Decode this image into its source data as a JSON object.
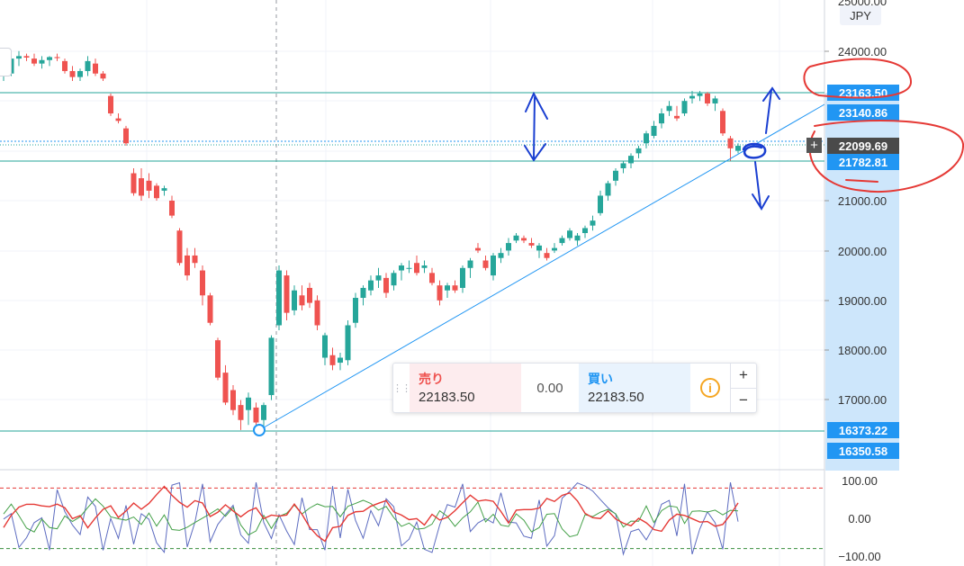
{
  "currency": "JPY",
  "price_axis": {
    "top_partial": "25000.00",
    "ticks": [
      "24000.00",
      "21000.00",
      "20000.00",
      "19000.00",
      "18000.00",
      "17000.00"
    ],
    "badges": [
      {
        "label": "23163.50",
        "color": "#2196f3"
      },
      {
        "label": "23140.86",
        "color": "#2196f3"
      },
      {
        "label": "22099.69",
        "color": "#4a4a4a"
      },
      {
        "label": "21782.81",
        "color": "#2196f3"
      },
      {
        "label": "16373.22",
        "color": "#2196f3"
      },
      {
        "label": "16350.58",
        "color": "#2196f3"
      }
    ]
  },
  "oscillator_axis": {
    "ticks": [
      "100.00",
      "0.00",
      "−100.00"
    ]
  },
  "trade_panel": {
    "sell_label": "売り",
    "sell_price": "22183.50",
    "spread": "0.00",
    "buy_label": "買い",
    "buy_price": "22183.50",
    "info_icon": "i",
    "plus": "+",
    "minus": "−"
  },
  "colors": {
    "up": "#26a69a",
    "down": "#ef5350",
    "line": "#2196f3",
    "axis_highlight": "#cde6fb",
    "annotation": "#1565c0",
    "circle": "#e53935"
  },
  "chart_data": {
    "type": "candlestick",
    "series_desc": "Nikkei 225 style daily candles",
    "candles": [
      [
        23500,
        23600,
        23400,
        23550
      ],
      [
        23550,
        23900,
        23500,
        23850
      ],
      [
        23850,
        24000,
        23700,
        23900
      ],
      [
        23900,
        23950,
        23800,
        23870
      ],
      [
        23850,
        23950,
        23700,
        23750
      ],
      [
        23750,
        23900,
        23650,
        23820
      ],
      [
        23820,
        23900,
        23700,
        23880
      ],
      [
        23880,
        23950,
        23800,
        23860
      ],
      [
        23800,
        23850,
        23550,
        23600
      ],
      [
        23600,
        23700,
        23400,
        23480
      ],
      [
        23480,
        23650,
        23400,
        23600
      ],
      [
        23600,
        23900,
        23500,
        23800
      ],
      [
        23750,
        23850,
        23500,
        23550
      ],
      [
        23550,
        23600,
        23400,
        23450
      ],
      [
        23100,
        23150,
        22700,
        22750
      ],
      [
        22650,
        22750,
        22550,
        22600
      ],
      [
        22450,
        22500,
        22100,
        22150
      ],
      [
        21550,
        21650,
        21100,
        21150
      ],
      [
        21450,
        21650,
        21000,
        21100
      ],
      [
        21400,
        21550,
        21050,
        21200
      ],
      [
        21300,
        21350,
        21000,
        21050
      ],
      [
        21200,
        21300,
        21100,
        21250
      ],
      [
        21000,
        21100,
        20650,
        20700
      ],
      [
        20400,
        20450,
        19700,
        19750
      ],
      [
        19900,
        20050,
        19400,
        19500
      ],
      [
        19900,
        20050,
        19650,
        19750
      ],
      [
        19600,
        19700,
        18900,
        19100
      ],
      [
        19100,
        19150,
        18500,
        18550
      ],
      [
        18200,
        18250,
        17400,
        17450
      ],
      [
        17550,
        17700,
        16900,
        16950
      ],
      [
        17200,
        17300,
        16700,
        16800
      ],
      [
        16900,
        17000,
        16400,
        16600
      ],
      [
        16800,
        17150,
        16500,
        17050
      ],
      [
        16850,
        16950,
        16450,
        16550
      ],
      [
        16600,
        16950,
        16400,
        16900
      ],
      [
        17100,
        18300,
        17000,
        18250
      ],
      [
        18500,
        19700,
        18400,
        19600
      ],
      [
        19500,
        19600,
        18600,
        18750
      ],
      [
        18800,
        19300,
        18700,
        19200
      ],
      [
        19100,
        19300,
        18800,
        18900
      ],
      [
        19250,
        19350,
        18850,
        18950
      ],
      [
        19000,
        19100,
        18400,
        18500
      ],
      [
        17850,
        18350,
        17700,
        18300
      ],
      [
        17900,
        18050,
        17600,
        17700
      ],
      [
        17750,
        17950,
        17600,
        17850
      ],
      [
        17800,
        18600,
        17700,
        18500
      ],
      [
        18550,
        19150,
        18450,
        19050
      ],
      [
        19050,
        19300,
        18900,
        19250
      ],
      [
        19200,
        19500,
        19100,
        19400
      ],
      [
        19400,
        19650,
        19250,
        19500
      ],
      [
        19450,
        19550,
        19050,
        19150
      ],
      [
        19300,
        19600,
        19200,
        19550
      ],
      [
        19600,
        19750,
        19400,
        19700
      ],
      [
        19650,
        19800,
        19550,
        19650
      ],
      [
        19750,
        19900,
        19500,
        19550
      ],
      [
        19650,
        19800,
        19550,
        19700
      ],
      [
        19550,
        19650,
        19300,
        19350
      ],
      [
        19300,
        19400,
        18900,
        19000
      ],
      [
        19200,
        19350,
        19050,
        19300
      ],
      [
        19300,
        19400,
        19150,
        19200
      ],
      [
        19250,
        19700,
        19150,
        19650
      ],
      [
        19650,
        19850,
        19450,
        19800
      ],
      [
        20050,
        20150,
        19950,
        20000
      ],
      [
        19800,
        19900,
        19600,
        19650
      ],
      [
        19500,
        19950,
        19400,
        19900
      ],
      [
        19850,
        20050,
        19750,
        19950
      ],
      [
        20000,
        20250,
        19900,
        20150
      ],
      [
        20200,
        20350,
        20150,
        20300
      ],
      [
        20250,
        20300,
        20150,
        20200
      ],
      [
        20150,
        20250,
        20050,
        20100
      ],
      [
        20000,
        20150,
        19850,
        20100
      ],
      [
        19950,
        20050,
        19800,
        19850
      ],
      [
        20000,
        20150,
        19950,
        20050
      ],
      [
        20150,
        20300,
        20100,
        20250
      ],
      [
        20250,
        20450,
        20200,
        20400
      ],
      [
        20200,
        20350,
        20100,
        20300
      ],
      [
        20350,
        20500,
        20250,
        20450
      ],
      [
        20500,
        20700,
        20400,
        20600
      ],
      [
        20750,
        21200,
        20700,
        21100
      ],
      [
        21100,
        21400,
        21000,
        21350
      ],
      [
        21400,
        21650,
        21300,
        21600
      ],
      [
        21650,
        21800,
        21550,
        21750
      ],
      [
        21750,
        21950,
        21650,
        21900
      ],
      [
        21950,
        22100,
        21850,
        22050
      ],
      [
        22150,
        22400,
        22050,
        22350
      ],
      [
        22300,
        22600,
        22250,
        22500
      ],
      [
        22550,
        22850,
        22450,
        22750
      ],
      [
        22800,
        23000,
        22700,
        22900
      ],
      [
        22700,
        22900,
        22600,
        22650
      ],
      [
        22750,
        23050,
        22700,
        23000
      ],
      [
        23050,
        23200,
        22950,
        23100
      ],
      [
        23100,
        23200,
        23000,
        23150
      ],
      [
        23150,
        23180,
        22900,
        22950
      ],
      [
        22950,
        23100,
        22800,
        23050
      ],
      [
        22800,
        22850,
        22300,
        22350
      ],
      [
        22250,
        22300,
        21800,
        22050
      ],
      [
        22000,
        22150,
        21950,
        22100
      ]
    ],
    "horizontal_levels": [
      23163.5,
      23140.86,
      21782.81,
      16373.22,
      16350.58
    ],
    "trendline": [
      [
        16373.22
      ],
      [
        23163.5
      ]
    ],
    "y_range": [
      16000,
      25000
    ],
    "oscillator_range": [
      -100,
      100
    ],
    "oscillator_levels": [
      80,
      -80
    ]
  }
}
